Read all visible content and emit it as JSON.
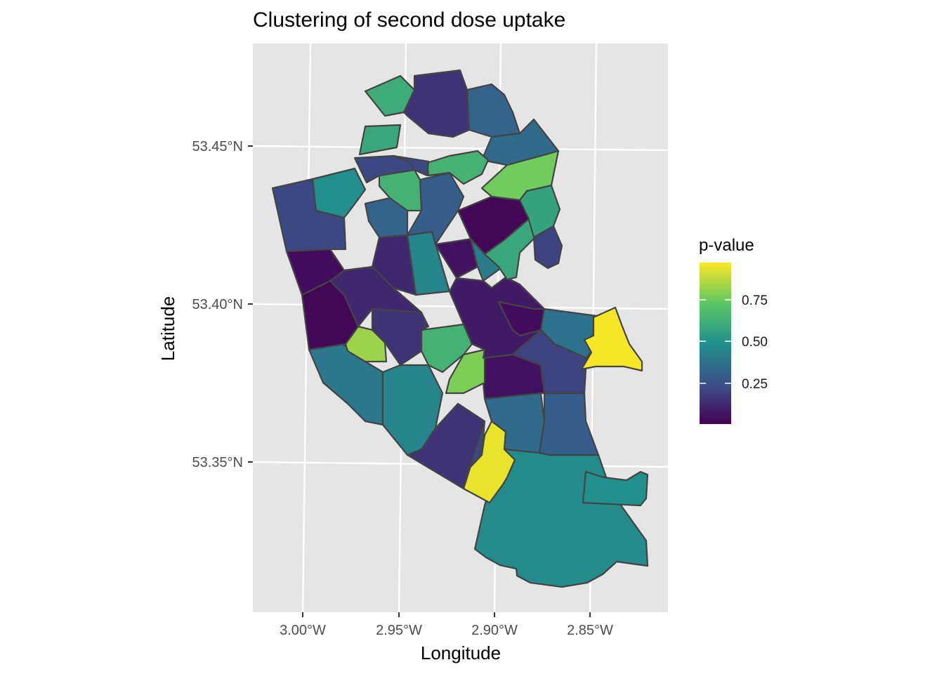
{
  "chart_data": {
    "type": "choropleth",
    "title": "Clustering of second dose uptake",
    "xlabel": "Longitude",
    "ylabel": "Latitude",
    "x_ticks": [
      "3.00°W",
      "2.95°W",
      "2.90°W",
      "2.85°W"
    ],
    "y_ticks": [
      "53.45°N",
      "53.40°N",
      "53.35°N"
    ],
    "legend": {
      "title": "p-value",
      "labels": [
        "0.75",
        "0.50",
        "0.25"
      ],
      "range": [
        0.0,
        1.0
      ],
      "palette": [
        "#440154",
        "#3b528b",
        "#21908c",
        "#5dc863",
        "#fde725"
      ]
    },
    "background_color": "#e5e5e5",
    "region_values": {
      "north-top-green": 0.62,
      "north-top-center": 0.15,
      "north-top-right": 0.32,
      "north-upper-left": 0.22,
      "north-green-left": 0.6,
      "north-center": 0.3,
      "north-east": 0.35,
      "north-light-green-a": 0.65,
      "north-light-green-b": 0.78,
      "north-green-right": 0.58,
      "northwest-big": 0.22,
      "northwest-teal": 0.5,
      "central-dark-a": 0.02,
      "central-dark-b": 0.05,
      "central-purple-a": 0.12,
      "central-teal-strip": 0.45,
      "central-green-east": 0.6,
      "central-east-teal": 0.42,
      "west-dark-a": 0.03,
      "west-dark-b": 0.02,
      "west-purple": 0.15,
      "west-lime": 0.85,
      "south-west-teal": 0.4,
      "south-center-teal": 0.45,
      "south-center-green": 0.65,
      "south-lime": 0.8,
      "south-dark": 0.05,
      "south-blue": 0.22,
      "south-teal-a": 0.35,
      "south-teal-b": 0.3,
      "south-yellow": 0.97,
      "south-big": 0.48,
      "south-east-small": 0.5,
      "east-dark-a": 0.03,
      "east-dark-b": 0.08,
      "east-teal": 0.38,
      "east-blue": 0.2,
      "east-yellow": 0.99,
      "far-south-blue": 0.15
    }
  }
}
